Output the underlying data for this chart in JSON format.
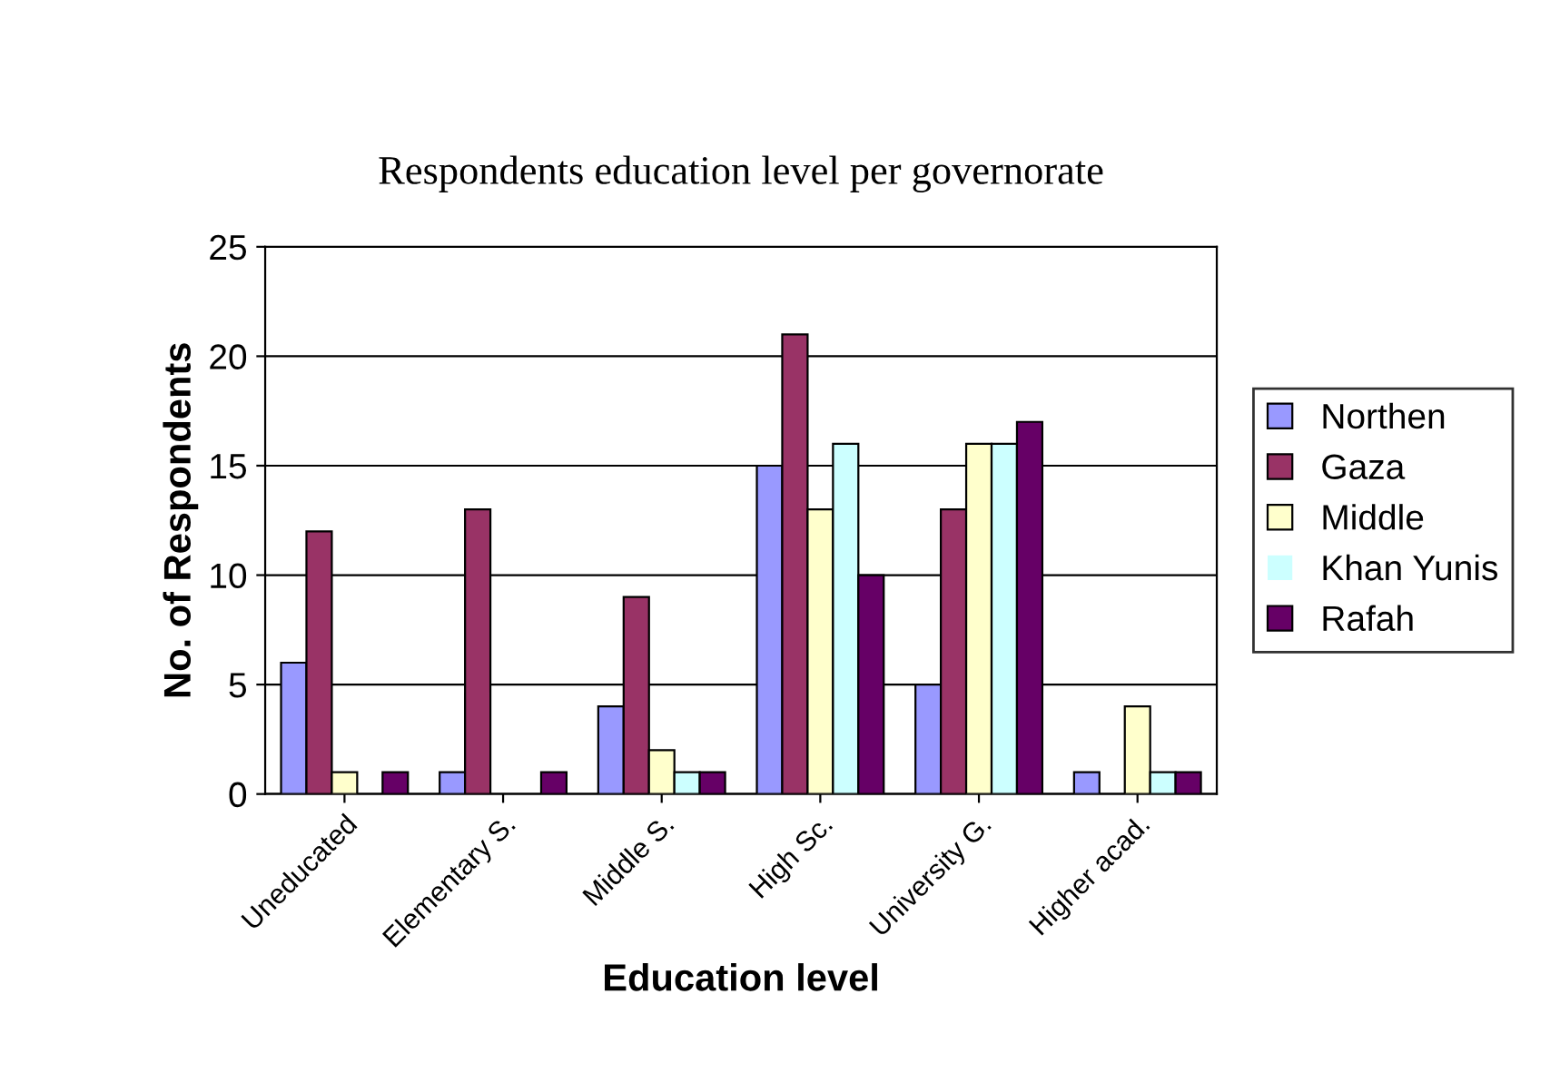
{
  "chart_data": {
    "type": "bar",
    "title": "Respondents education level per governorate",
    "xlabel": "Education level",
    "ylabel": "No. of Respondents",
    "categories": [
      "Uneducated",
      "Elementary S.",
      "Middle S.",
      "High Sc.",
      "University G.",
      "Higher acad."
    ],
    "series": [
      {
        "name": "Northen",
        "color": "#9999ff",
        "values": [
          6,
          1,
          4,
          15,
          5,
          1
        ]
      },
      {
        "name": "Gaza",
        "color": "#993366",
        "values": [
          12,
          13,
          9,
          21,
          13,
          0
        ]
      },
      {
        "name": "Middle",
        "color": "#ffffcc",
        "values": [
          1,
          0,
          2,
          13,
          16,
          4
        ]
      },
      {
        "name": "Khan Yunis",
        "color": "#ccffff",
        "values": [
          0,
          0,
          1,
          16,
          16,
          1
        ]
      },
      {
        "name": "Rafah",
        "color": "#660066",
        "values": [
          1,
          1,
          1,
          10,
          17,
          1
        ]
      }
    ],
    "ylim": [
      0,
      25
    ],
    "yticks": [
      0,
      5,
      10,
      15,
      20,
      25
    ],
    "grid": "y",
    "legend": "right"
  }
}
